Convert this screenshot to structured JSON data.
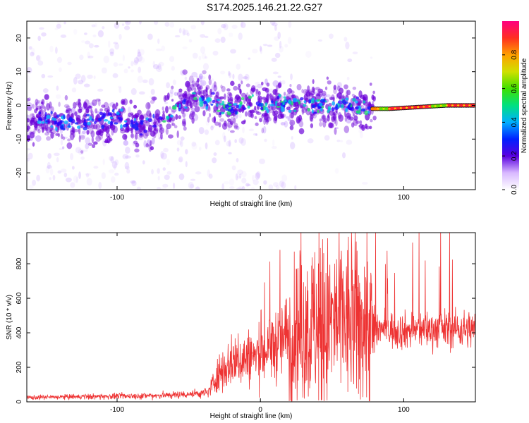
{
  "title": "S174.2025.146.21.22.G27",
  "colors": {
    "snr_line": "#ee3333",
    "spectrogram_track": "#6a00d8",
    "background": "#ffffff"
  },
  "colorbar": {
    "label": "Normalized spectral amplitude",
    "ticks": [
      "0.0",
      "0.2",
      "0.4",
      "0.6",
      "0.8"
    ],
    "range": [
      0,
      1
    ]
  },
  "chart_data": [
    {
      "type": "heatmap",
      "xlabel": "Height of straight line (km)",
      "ylabel": "Frequency (Hz)",
      "xlim": [
        -163,
        150
      ],
      "ylim": [
        -25,
        25
      ],
      "x_ticks": [
        "-100",
        "0",
        "100"
      ],
      "y_ticks": [
        "-20",
        "-10",
        "0",
        "10",
        "20"
      ],
      "ridge": {
        "x": [
          -155,
          -140,
          -120,
          -100,
          -80,
          -70,
          -60,
          -50,
          -40,
          -30,
          -20,
          -10,
          0,
          10,
          20,
          40,
          60,
          78,
          90,
          110,
          130,
          150
        ],
        "y": [
          -4,
          -5,
          -5,
          -4,
          -6,
          -5,
          -1,
          2,
          2,
          0,
          -1,
          1,
          0,
          0,
          1,
          0,
          0,
          -1,
          -1,
          -0.5,
          0,
          0
        ]
      }
    },
    {
      "type": "line",
      "xlabel": "Height of straight line (km)",
      "ylabel": "SNR (10 * v/v)",
      "xlim": [
        -163,
        150
      ],
      "ylim": [
        0,
        980
      ],
      "x_ticks": [
        "-100",
        "0",
        "100"
      ],
      "y_ticks": [
        "0",
        "200",
        "400",
        "600",
        "800"
      ],
      "envelope": {
        "x": [
          -163,
          -120,
          -80,
          -60,
          -40,
          -36,
          -30,
          -20,
          -10,
          0,
          10,
          20,
          30,
          40,
          50,
          60,
          70,
          75,
          80,
          90,
          100,
          110,
          120,
          130,
          140,
          150
        ],
        "y": [
          25,
          30,
          35,
          40,
          50,
          60,
          160,
          230,
          250,
          270,
          330,
          380,
          420,
          450,
          460,
          470,
          450,
          440,
          430,
          420,
          410,
          420,
          420,
          425,
          420,
          420
        ]
      }
    }
  ]
}
